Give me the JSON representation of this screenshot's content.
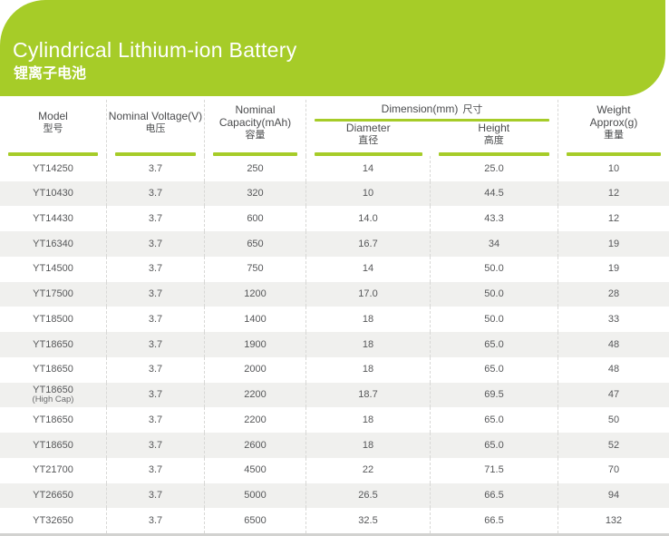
{
  "banner": {
    "title": "Cylindrical Lithium-ion Battery",
    "subtitle": "锂离子电池"
  },
  "colors": {
    "accent_green": "#a6cc28",
    "stripe": "#f0f0ee",
    "header_text": "#4b4c4e",
    "cell_text": "#565759"
  },
  "header": {
    "model": {
      "en": "Model",
      "zh": "型号"
    },
    "voltage": {
      "en": "Nominal Voltage(V)",
      "zh": "电压"
    },
    "capacity": {
      "en": "Nominal Capacity(mAh)",
      "zh": "容量"
    },
    "dimension": {
      "en": "Dimension(mm)",
      "zh": "尺寸"
    },
    "diameter": {
      "en": "Diameter",
      "zh": "直径"
    },
    "height": {
      "en": "Height",
      "zh": "高度"
    },
    "weight": {
      "en": "Weight Approx(g)",
      "zh": "重量"
    }
  },
  "table": {
    "rows": [
      {
        "model": "YT14250",
        "voltage": "3.7",
        "capacity": "250",
        "diameter": "14",
        "height": "25.0",
        "weight": "10"
      },
      {
        "model": "YT10430",
        "voltage": "3.7",
        "capacity": "320",
        "diameter": "10",
        "height": "44.5",
        "weight": "12"
      },
      {
        "model": "YT14430",
        "voltage": "3.7",
        "capacity": "600",
        "diameter": "14.0",
        "height": "43.3",
        "weight": "12"
      },
      {
        "model": "YT16340",
        "voltage": "3.7",
        "capacity": "650",
        "diameter": "16.7",
        "height": "34",
        "weight": "19"
      },
      {
        "model": "YT14500",
        "voltage": "3.7",
        "capacity": "750",
        "diameter": "14",
        "height": "50.0",
        "weight": "19"
      },
      {
        "model": "YT17500",
        "voltage": "3.7",
        "capacity": "1200",
        "diameter": "17.0",
        "height": "50.0",
        "weight": "28"
      },
      {
        "model": "YT18500",
        "voltage": "3.7",
        "capacity": "1400",
        "diameter": "18",
        "height": "50.0",
        "weight": "33"
      },
      {
        "model": "YT18650",
        "voltage": "3.7",
        "capacity": "1900",
        "diameter": "18",
        "height": "65.0",
        "weight": "48"
      },
      {
        "model": "YT18650",
        "voltage": "3.7",
        "capacity": "2000",
        "diameter": "18",
        "height": "65.0",
        "weight": "48"
      },
      {
        "model": "YT18650",
        "model_sub": "(High Cap)",
        "voltage": "3.7",
        "capacity": "2200",
        "diameter": "18.7",
        "height": "69.5",
        "weight": "47"
      },
      {
        "model": "YT18650",
        "voltage": "3.7",
        "capacity": "2200",
        "diameter": "18",
        "height": "65.0",
        "weight": "50"
      },
      {
        "model": "YT18650",
        "voltage": "3.7",
        "capacity": "2600",
        "diameter": "18",
        "height": "65.0",
        "weight": "52"
      },
      {
        "model": "YT21700",
        "voltage": "3.7",
        "capacity": "4500",
        "diameter": "22",
        "height": "71.5",
        "weight": "70"
      },
      {
        "model": "YT26650",
        "voltage": "3.7",
        "capacity": "5000",
        "diameter": "26.5",
        "height": "66.5",
        "weight": "94"
      },
      {
        "model": "YT32650",
        "voltage": "3.7",
        "capacity": "6500",
        "diameter": "32.5",
        "height": "66.5",
        "weight": "132"
      }
    ]
  }
}
